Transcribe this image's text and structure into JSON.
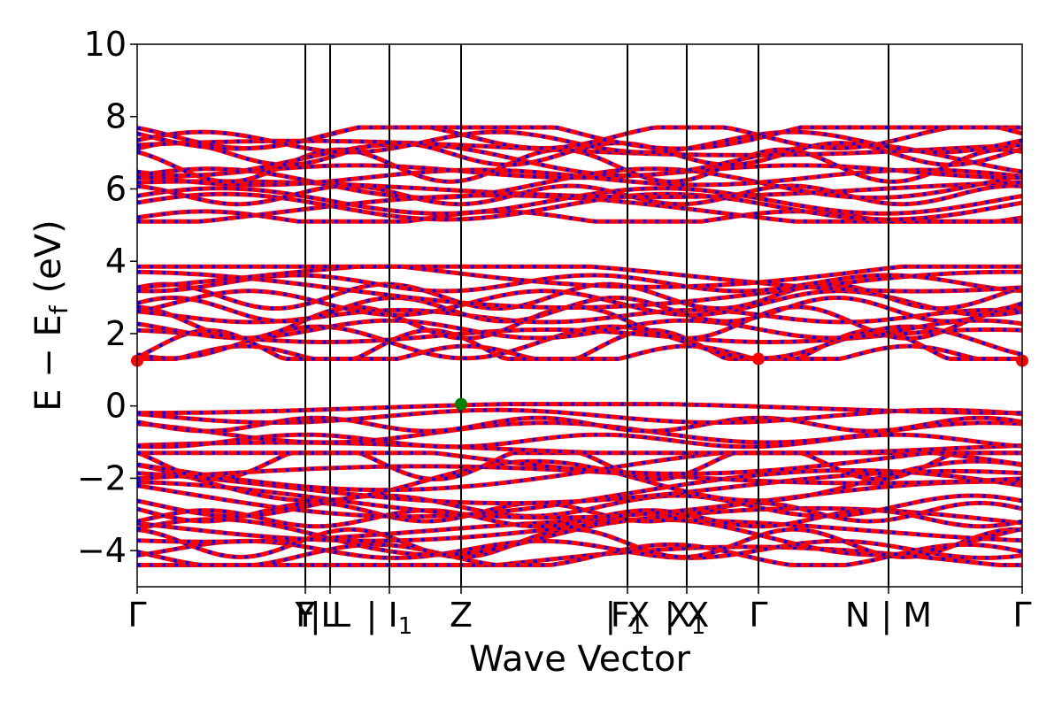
{
  "chart_data": {
    "type": "line",
    "title": "",
    "xlabel": "Wave Vector",
    "ylabel": "E − E",
    "ylabel_sub": "f",
    "ylabel_unit": "(eV)",
    "ylim": [
      -5,
      10
    ],
    "yticks": [
      -4,
      -2,
      0,
      2,
      4,
      6,
      8,
      10
    ],
    "ytick_labels": [
      "−4",
      "−2",
      "0",
      "2",
      "4",
      "6",
      "8",
      "10"
    ],
    "xlim": [
      0,
      1
    ],
    "kpoints": [
      {
        "x": 0.0,
        "label": "Γ",
        "sub": ""
      },
      {
        "x": 0.19,
        "label": "Y",
        "sub": ""
      },
      {
        "x": 0.19,
        "label": "F",
        "sub": ""
      },
      {
        "x": 0.218,
        "label": "L",
        "sub": ""
      },
      {
        "x": 0.218,
        "label": "| L",
        "sub": ""
      },
      {
        "x": 0.285,
        "label": "| I",
        "sub": "1"
      },
      {
        "x": 0.366,
        "label": "Z",
        "sub": ""
      },
      {
        "x": 0.554,
        "label": "F",
        "sub": "1"
      },
      {
        "x": 0.554,
        "label": "| X",
        "sub": ""
      },
      {
        "x": 0.621,
        "label": "X",
        "sub": "1"
      },
      {
        "x": 0.621,
        "label": "| X",
        "sub": ""
      },
      {
        "x": 0.702,
        "label": "Γ",
        "sub": ""
      },
      {
        "x": 0.849,
        "label": "N | M",
        "sub": ""
      },
      {
        "x": 1.0,
        "label": "Γ",
        "sub": ""
      }
    ],
    "vertical_lines_x": [
      0.19,
      0.218,
      0.285,
      0.366,
      0.554,
      0.621,
      0.702,
      0.849
    ],
    "series": [
      {
        "spin": "up",
        "color": "#ff0000"
      },
      {
        "spin": "down",
        "color": "#0000ff"
      }
    ],
    "band_groups": [
      {
        "name": "valence_deep",
        "emin": -4.4,
        "emax": -1.3,
        "count": 18
      },
      {
        "name": "valence_top",
        "emin": -1.3,
        "emax": 0.05,
        "count": 6
      },
      {
        "name": "conduction_low",
        "emin": 1.3,
        "emax": 3.85,
        "count": 14
      },
      {
        "name": "conduction_high",
        "emin": 5.1,
        "emax": 7.7,
        "count": 16
      }
    ],
    "vbm": {
      "x": 0.366,
      "y": 0.05,
      "color": "#008000"
    },
    "cbm_points": [
      {
        "x": 0.0,
        "y": 1.25,
        "color": "#ff0000"
      },
      {
        "x": 0.702,
        "y": 1.3,
        "color": "#ff0000"
      },
      {
        "x": 1.0,
        "y": 1.25,
        "color": "#ff0000"
      }
    ]
  }
}
